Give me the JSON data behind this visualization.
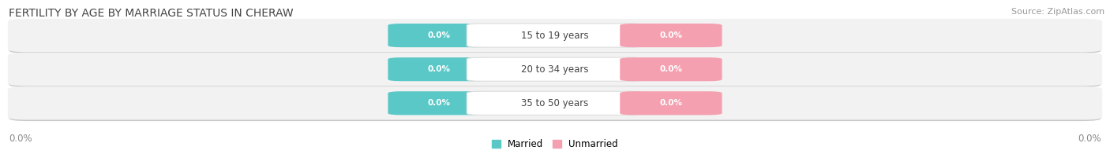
{
  "title": "FERTILITY BY AGE BY MARRIAGE STATUS IN CHERAW",
  "source": "Source: ZipAtlas.com",
  "categories": [
    "15 to 19 years",
    "20 to 34 years",
    "35 to 50 years"
  ],
  "married_color": "#5BC8C8",
  "unmarried_color": "#F4A0B0",
  "row_bg_color": "#F0F0F0",
  "row_shadow_color": "#CCCCCC",
  "axis_label_left": "0.0%",
  "axis_label_right": "0.0%",
  "title_fontsize": 10,
  "source_fontsize": 8,
  "label_fontsize": 8.5,
  "cat_fontsize": 8.5,
  "pill_fontsize": 7.5,
  "legend_married": "Married",
  "legend_unmarried": "Unmarried",
  "background_color": "#FFFFFF"
}
